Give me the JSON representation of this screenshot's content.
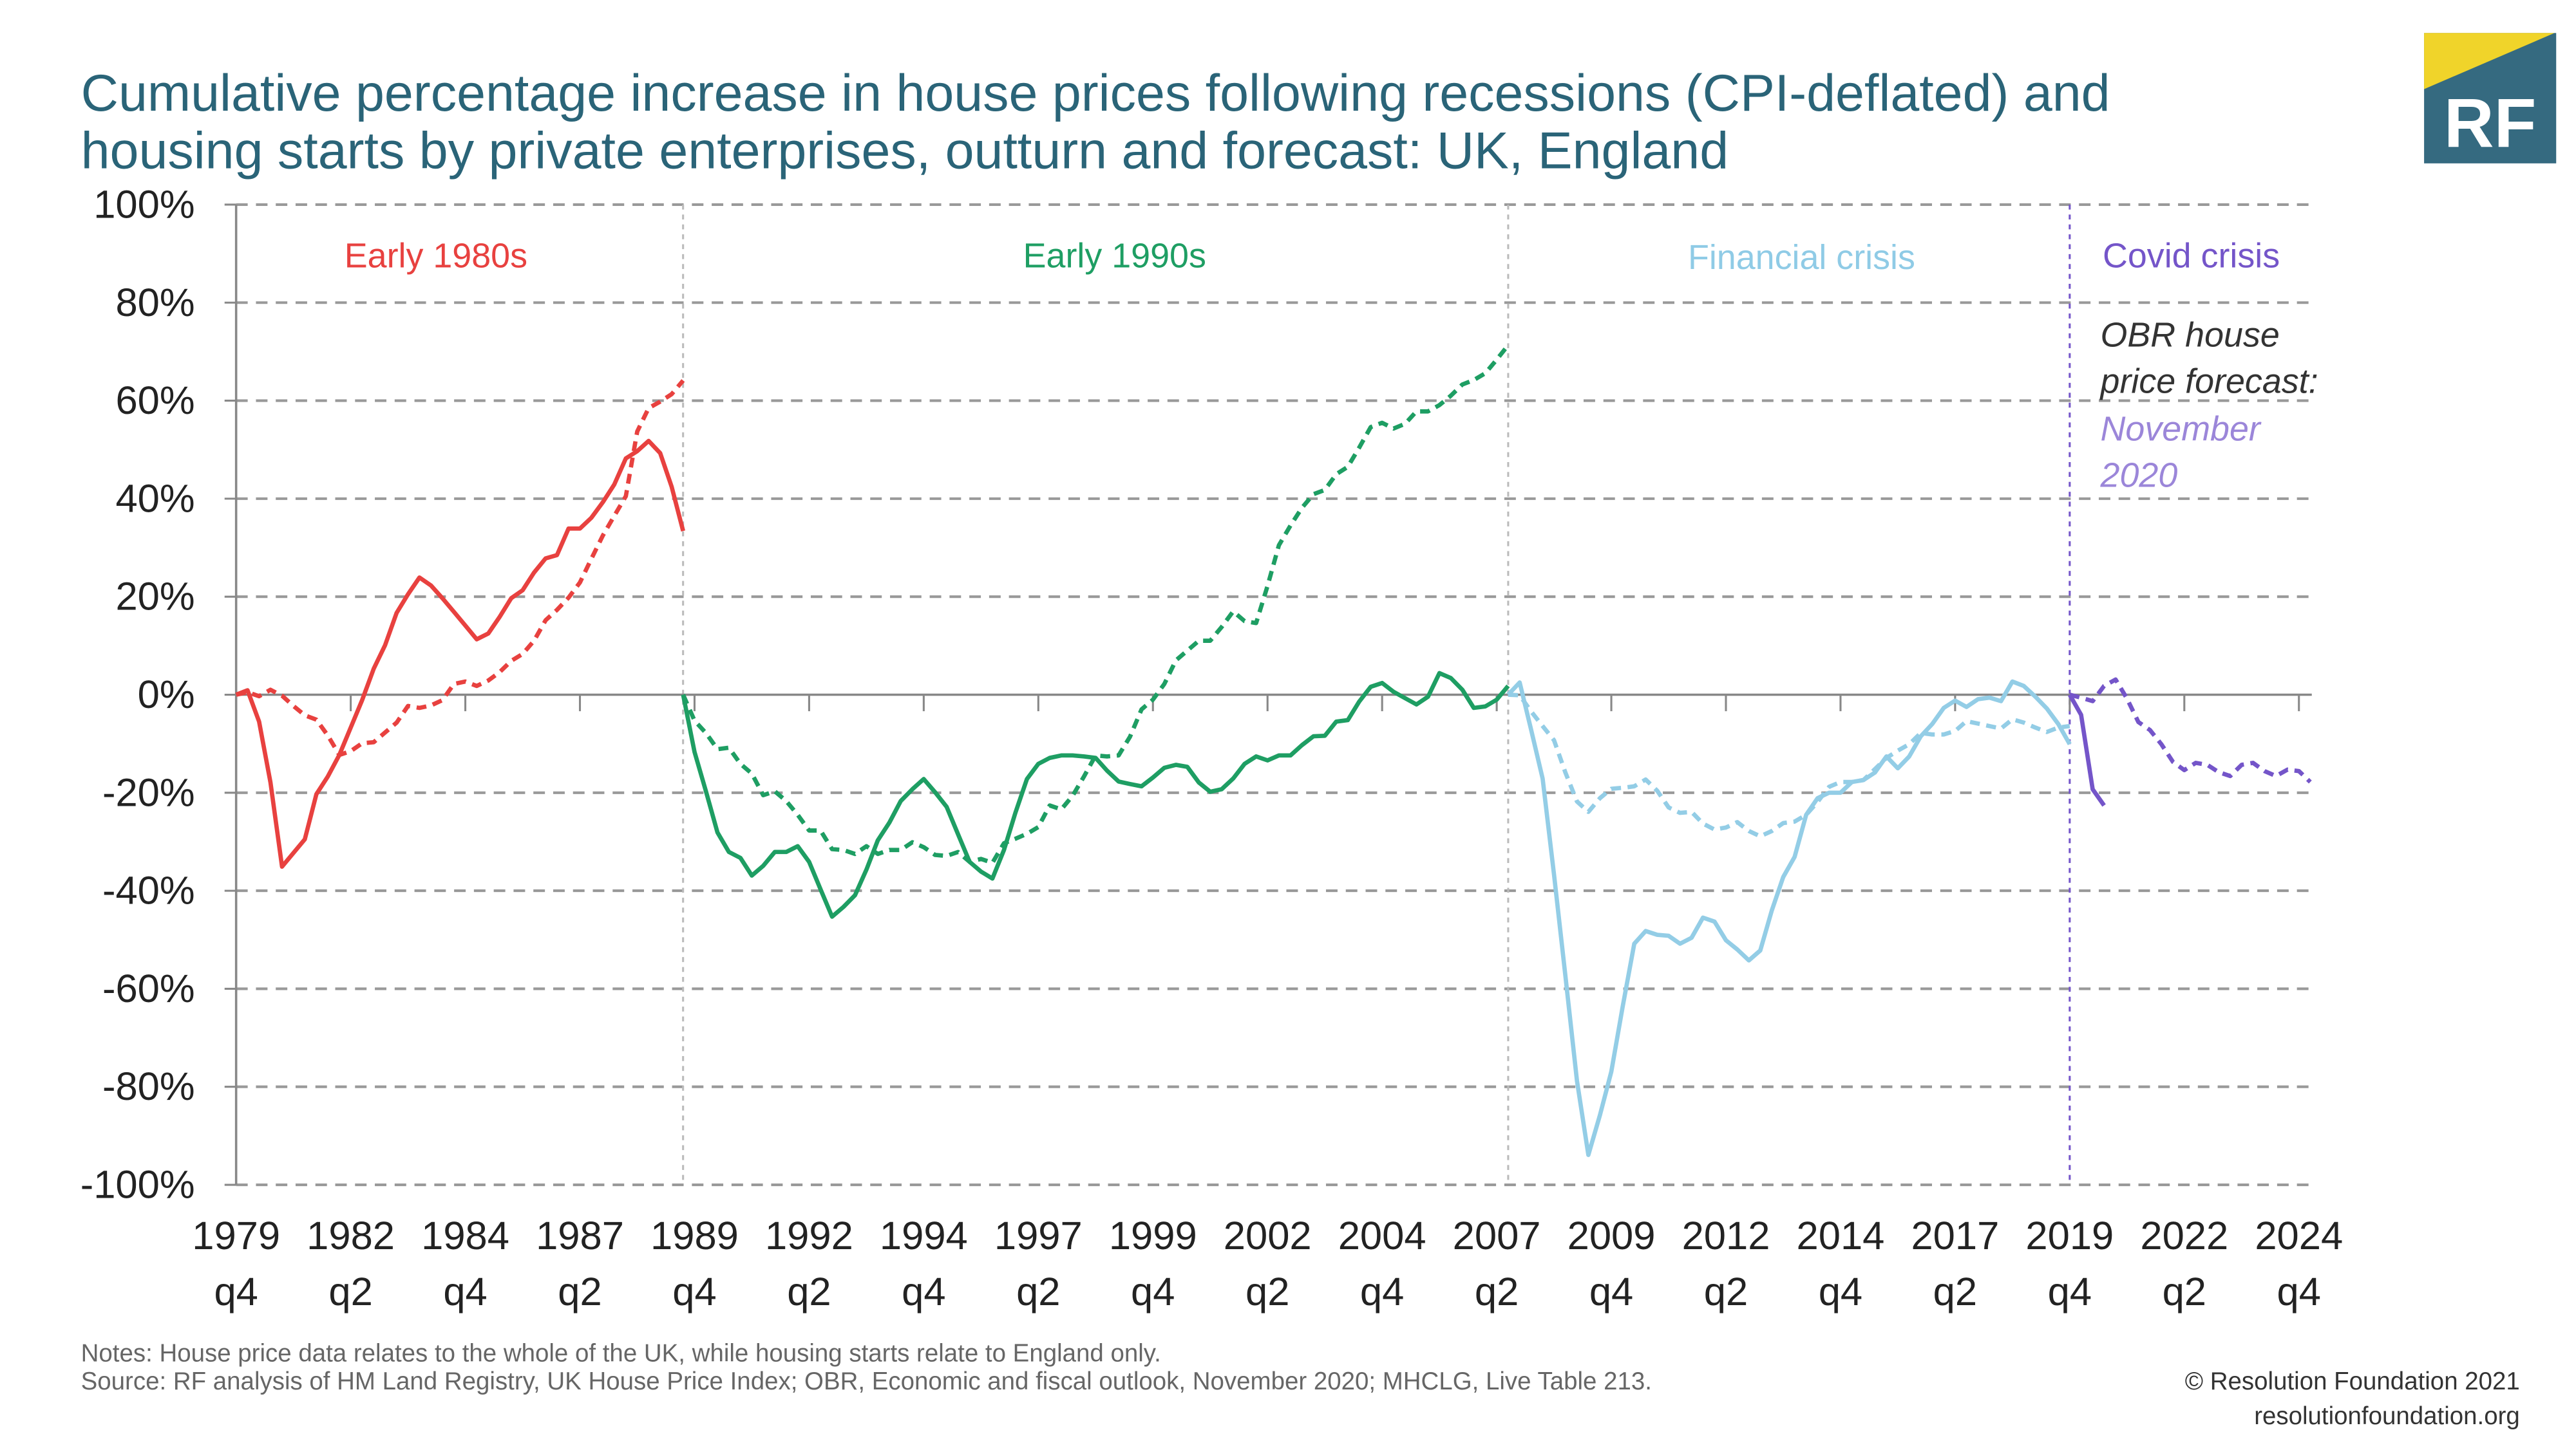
{
  "title": {
    "line1": "Cumulative percentage increase in house prices following recessions (CPI-deflated) and",
    "line2": "housing starts by private enterprises, outturn and forecast: UK, England"
  },
  "logo": {
    "text": "RF",
    "colors": {
      "primary": "#356a80",
      "accent": "#f0d42a"
    }
  },
  "footer": {
    "notes": "Notes: House price data relates to the whole of the UK, while housing starts relate to England only.",
    "source": "Source: RF analysis of HM Land Registry, UK House Price Index; OBR, Economic and fiscal outlook, November 2020; MHCLG, Live Table 213.",
    "copyright": "© Resolution Foundation 2021",
    "website": "resolutionfoundation.org"
  },
  "chart_data": {
    "type": "line",
    "x_unit": "quarter",
    "x_start": "1979 q4",
    "xlim": [
      "1979 q4",
      "2025 q1"
    ],
    "ylim": [
      -100,
      100
    ],
    "y_ticks": [
      "100%",
      "80%",
      "60%",
      "40%",
      "20%",
      "0%",
      "-20%",
      "-40%",
      "-60%",
      "-80%",
      "-100%"
    ],
    "y_tick_values": [
      100,
      80,
      60,
      40,
      20,
      0,
      -20,
      -40,
      -60,
      -80,
      -100
    ],
    "x_ticks": [
      {
        "year": "1979",
        "q": "q4"
      },
      {
        "year": "1982",
        "q": "q2"
      },
      {
        "year": "1984",
        "q": "q4"
      },
      {
        "year": "1987",
        "q": "q2"
      },
      {
        "year": "1989",
        "q": "q4"
      },
      {
        "year": "1992",
        "q": "q2"
      },
      {
        "year": "1994",
        "q": "q4"
      },
      {
        "year": "1997",
        "q": "q2"
      },
      {
        "year": "1999",
        "q": "q4"
      },
      {
        "year": "2002",
        "q": "q2"
      },
      {
        "year": "2004",
        "q": "q4"
      },
      {
        "year": "2007",
        "q": "q2"
      },
      {
        "year": "2009",
        "q": "q4"
      },
      {
        "year": "2012",
        "q": "q2"
      },
      {
        "year": "2014",
        "q": "q4"
      },
      {
        "year": "2017",
        "q": "q2"
      },
      {
        "year": "2019",
        "q": "q4"
      },
      {
        "year": "2022",
        "q": "q2"
      },
      {
        "year": "2024",
        "q": "q4"
      }
    ],
    "grid": "horizontal dashed",
    "legend": "none",
    "recession_markers": [
      {
        "start": "1989 q3",
        "color": "#bbbbbb"
      },
      {
        "start": "2007 q3",
        "color": "#bbbbbb"
      },
      {
        "start": "2019 q4",
        "color": "#7455c9"
      }
    ],
    "annotations": [
      {
        "text": "Early 1980s",
        "color": "#e8413f"
      },
      {
        "text": "Early 1990s",
        "color": "#1e9e63"
      },
      {
        "text": "Financial crisis",
        "color": "#8fcbe6"
      },
      {
        "text": "Covid crisis",
        "color": "#7455c9"
      }
    ],
    "forecast_note": {
      "lines": [
        "OBR house",
        "price forecast:"
      ],
      "highlight": [
        "November",
        "2020"
      ],
      "highlight_color": "#9b86d9"
    },
    "series": [
      {
        "start": "1979 q4",
        "color": "#e8413f",
        "style": "solid",
        "values": [
          0,
          0.9,
          -5.5,
          -17.9,
          -35.1,
          -32.3,
          -29.5,
          -20.3,
          -16.7,
          -12.3,
          -6.7,
          -1.1,
          5.3,
          10.1,
          16.7,
          20.5,
          23.9,
          22.3,
          19.7,
          16.9,
          14.1,
          11.3,
          12.5,
          15.9,
          19.7,
          21.3,
          24.9,
          27.8,
          28.5,
          33.9,
          33.9,
          36.1,
          39.3,
          42.9,
          48.2,
          49.7,
          51.8,
          49.3,
          42.5,
          33.4
        ]
      },
      {
        "start": "1979 q4",
        "color": "#e8413f",
        "style": "dashed",
        "values": [
          0,
          0.5,
          -0.3,
          1.0,
          -0.2,
          -2.3,
          -4.2,
          -5.1,
          -8.3,
          -12.3,
          -11.5,
          -9.9,
          -9.7,
          -7.7,
          -5.7,
          -2.3,
          -2.7,
          -2.2,
          -1.1,
          2.2,
          2.7,
          1.8,
          2.9,
          4.6,
          6.9,
          8.3,
          11.0,
          15.2,
          17.3,
          19.8,
          22.9,
          27.7,
          32.5,
          36.5,
          40.5,
          53.7,
          58.5,
          59.8,
          61.3,
          64.1
        ]
      },
      {
        "start": "1989 q3",
        "color": "#1e9e63",
        "style": "solid",
        "values": [
          0,
          -11.7,
          -19.7,
          -28.1,
          -32.1,
          -33.3,
          -36.9,
          -34.9,
          -32.1,
          -32.1,
          -30.9,
          -34.1,
          -39.7,
          -45.3,
          -43.3,
          -40.9,
          -35.7,
          -29.7,
          -26.1,
          -21.7,
          -19.3,
          -17.2,
          -19.9,
          -22.9,
          -28.5,
          -34.1,
          -36.1,
          -37.5,
          -31.7,
          -24.1,
          -17.2,
          -14.1,
          -12.9,
          -12.4,
          -12.4,
          -12.6,
          -12.9,
          -15.5,
          -17.7,
          -18.2,
          -18.7,
          -16.9,
          -14.9,
          -14.3,
          -14.7,
          -17.9,
          -19.8,
          -19.3,
          -17.1,
          -14.1,
          -12.6,
          -13.4,
          -12.4,
          -12.4,
          -10.3,
          -8.5,
          -8.4,
          -5.5,
          -5.2,
          -1.4,
          1.6,
          2.4,
          0.6,
          -0.7,
          -2.0,
          -0.4,
          4.4,
          3.4,
          1.0,
          -2.7,
          -2.4,
          -1.0,
          1.8
        ]
      },
      {
        "start": "1989 q3",
        "color": "#1e9e63",
        "style": "dashed",
        "values": [
          0,
          -5.3,
          -7.8,
          -11.1,
          -10.8,
          -14.1,
          -16.1,
          -20.5,
          -19.7,
          -21.7,
          -24.5,
          -27.7,
          -27.7,
          -31.5,
          -31.7,
          -32.5,
          -30.9,
          -32.5,
          -31.7,
          -31.7,
          -30.1,
          -31.1,
          -32.7,
          -32.9,
          -32.1,
          -34.1,
          -33.5,
          -34.3,
          -30.3,
          -29.4,
          -28.4,
          -27.0,
          -22.6,
          -23.4,
          -20.6,
          -16.6,
          -12.4,
          -12.6,
          -12.4,
          -8.6,
          -3.0,
          -1.0,
          2.2,
          7.0,
          9.0,
          11.0,
          11.0,
          13.8,
          17.0,
          15.0,
          14.6,
          22.2,
          30.5,
          34.5,
          38.1,
          40.9,
          41.8,
          45.0,
          46.5,
          50.4,
          54.6,
          55.5,
          54.3,
          55.3,
          57.8,
          57.8,
          59.1,
          61.0,
          63.3,
          64.2,
          65.6,
          68.4,
          71.3
        ]
      },
      {
        "start": "2007 q3",
        "color": "#93cde6",
        "style": "solid",
        "values": [
          0,
          2.5,
          -7.1,
          -17.1,
          -36.7,
          -57.4,
          -78.8,
          -93.9,
          -85.8,
          -76.9,
          -63.6,
          -50.8,
          -48.2,
          -49.0,
          -49.2,
          -50.8,
          -49.6,
          -45.5,
          -46.3,
          -50.1,
          -52.0,
          -54.2,
          -52.2,
          -44.0,
          -37.2,
          -33.1,
          -24.5,
          -21.1,
          -20.0,
          -20.0,
          -17.8,
          -17.4,
          -15.9,
          -12.6,
          -15.0,
          -12.6,
          -8.5,
          -6.0,
          -2.7,
          -1.2,
          -2.5,
          -0.9,
          -0.6,
          -1.3,
          2.7,
          1.8,
          -0.4,
          -2.8,
          -6.0,
          -10.1
        ]
      },
      {
        "start": "2007 q3",
        "color": "#93cde6",
        "style": "dashed",
        "values": [
          0,
          -0.1,
          -3.4,
          -6.4,
          -9.3,
          -15.9,
          -21.8,
          -23.9,
          -21.1,
          -19.2,
          -19.0,
          -18.7,
          -17.3,
          -19.6,
          -23.0,
          -24.1,
          -23.9,
          -26.3,
          -27.5,
          -27.1,
          -26.0,
          -27.8,
          -28.9,
          -27.8,
          -26.2,
          -25.9,
          -24.5,
          -21.9,
          -18.8,
          -17.8,
          -17.8,
          -17.4,
          -15.2,
          -12.9,
          -11.4,
          -10.1,
          -7.8,
          -8.1,
          -8.1,
          -7.4,
          -5.4,
          -5.9,
          -6.4,
          -6.9,
          -5.0,
          -5.7,
          -6.7,
          -7.6,
          -6.7,
          -6.4
        ]
      },
      {
        "start": "2019 q4",
        "color": "#7455c9",
        "style": "solid",
        "values": [
          0,
          -4.1,
          -19.3,
          -22.6
        ]
      },
      {
        "start": "2019 q4",
        "color": "#7455c9",
        "style": "dashed",
        "values": [
          0,
          -0.6,
          -1.3,
          1.8,
          3.1,
          -0.8,
          -5.6,
          -7.2,
          -10.1,
          -13.7,
          -15.4,
          -13.9,
          -14.3,
          -15.8,
          -16.6,
          -14.3,
          -13.9,
          -15.6,
          -16.6,
          -15.3,
          -15.6,
          -17.8
        ]
      }
    ]
  }
}
